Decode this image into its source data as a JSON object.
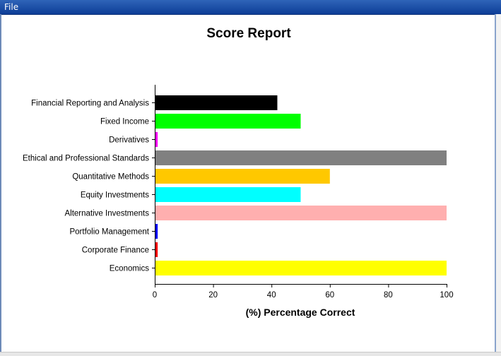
{
  "window": {
    "menu": {
      "file_label": "File"
    }
  },
  "chart_data": {
    "type": "bar",
    "orientation": "horizontal",
    "title": "Score Report",
    "xlabel": "(%) Percentage Correct",
    "ylabel": "",
    "xlim": [
      0,
      100
    ],
    "xticks": [
      "0",
      "20",
      "40",
      "60",
      "80",
      "100"
    ],
    "categories": [
      "Financial Reporting and Analysis",
      "Fixed Income",
      "Derivatives",
      "Ethical and Professional Standards",
      "Quantitative Methods",
      "Equity Investments",
      "Alternative Investments",
      "Portfolio Management",
      "Corporate Finance",
      "Economics"
    ],
    "values": [
      42,
      50,
      1,
      100,
      60,
      50,
      100,
      1,
      1,
      100
    ],
    "colors": [
      "#000000",
      "#00ff00",
      "#ff00ff",
      "#808080",
      "#ffc800",
      "#00ffff",
      "#ffafaf",
      "#0000ff",
      "#ff0000",
      "#ffff00"
    ],
    "grid": false,
    "legend": "none"
  }
}
